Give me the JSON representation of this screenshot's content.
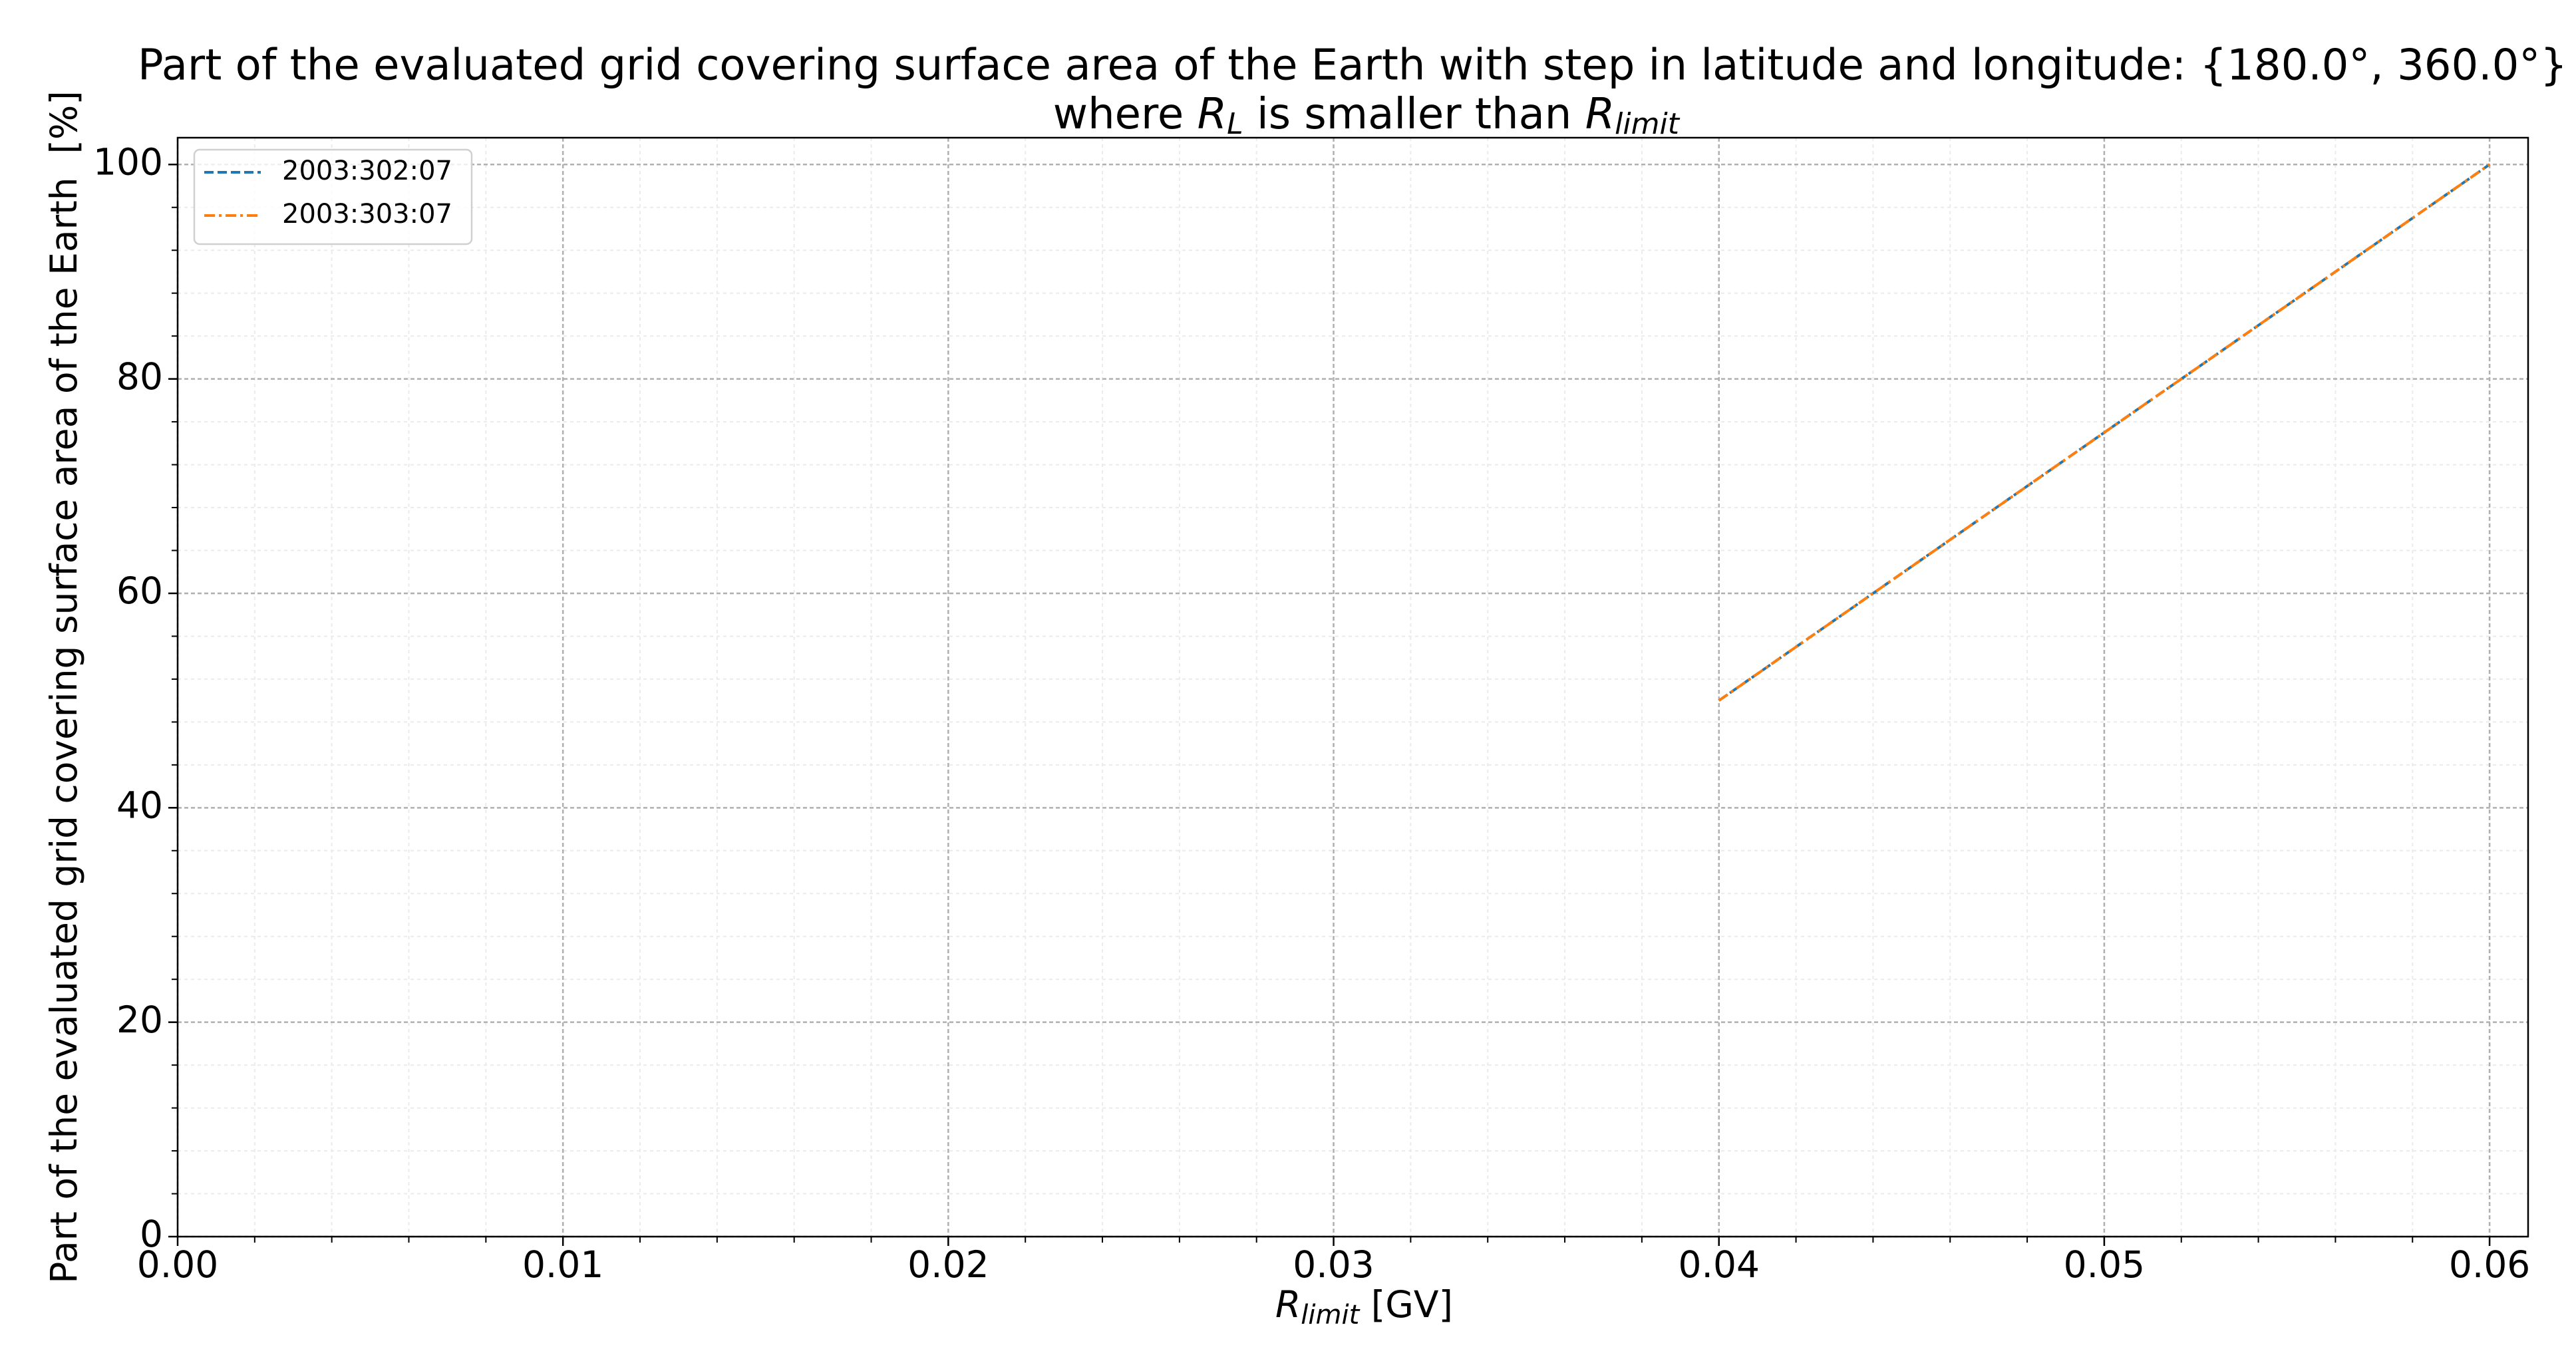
{
  "chart_data": {
    "type": "line",
    "title": "Part of the evaluated grid covering surface area of the Earth with step in latitude and longitude: {180.0°, 360.0°}",
    "subtitle": [
      "where ",
      "R",
      "L",
      " is smaller than ",
      "R",
      "limit"
    ],
    "xlabel": [
      "R",
      "limit",
      " [GV]"
    ],
    "ylabel": "Part of the evaluated grid covering surface area of the Earth  [%]",
    "x": [
      0.04,
      0.06
    ],
    "series": [
      {
        "name": "2003:302:07",
        "color": "#1f77b4",
        "style": "dashed",
        "values": [
          50,
          100
        ]
      },
      {
        "name": "2003:303:07",
        "color": "#ff7f0e",
        "style": "dashdot",
        "values": [
          50,
          100
        ]
      }
    ],
    "xlim": [
      0,
      0.061
    ],
    "xticks": [
      {
        "value": 0,
        "label": "0.00"
      },
      {
        "value": 0.01,
        "label": "0.01"
      },
      {
        "value": 0.02,
        "label": "0.02"
      },
      {
        "value": 0.03,
        "label": "0.03"
      },
      {
        "value": 0.04,
        "label": "0.04"
      },
      {
        "value": 0.05,
        "label": "0.05"
      },
      {
        "value": 0.06,
        "label": "0.06"
      }
    ],
    "ylim": [
      0,
      102.5
    ],
    "yticks": [
      0,
      20,
      40,
      60,
      80,
      100
    ],
    "grid": true,
    "minor_grid": true,
    "legend": "upper left"
  }
}
